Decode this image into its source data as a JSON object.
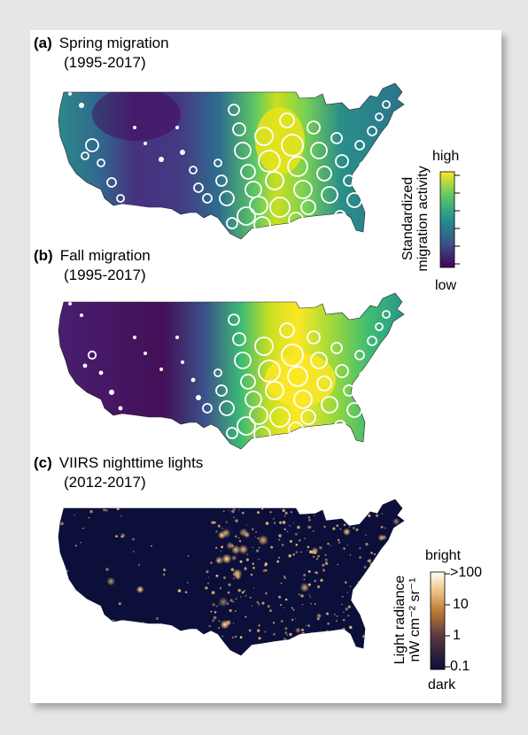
{
  "panels": {
    "a": {
      "letter": "(a)",
      "title": "Spring migration",
      "period": "(1995-2017)"
    },
    "b": {
      "letter": "(b)",
      "title": "Fall migration",
      "period": "(1995-2017)"
    },
    "c": {
      "letter": "(c)",
      "title": "VIIRS nighttime lights",
      "period": "(2012-2017)"
    }
  },
  "legend_migration": {
    "high": "high",
    "low": "low",
    "title_line1": "Standardized",
    "title_line2": "migration activity",
    "colors": [
      "#440154",
      "#3b528b",
      "#21908d",
      "#5dc863",
      "#fde725"
    ]
  },
  "legend_lights": {
    "bright": "bright",
    "dark": "dark",
    "title_line1": "Light radiance",
    "title_line2": "nW cm⁻² sr⁻¹",
    "ticks": [
      ">100",
      "10",
      "1",
      "0.1"
    ],
    "colors": [
      "#fffbf0",
      "#f5d7a0",
      "#d08a3a",
      "#6a4a3a",
      "#0b0f38"
    ]
  },
  "map_colors": {
    "night_background": "#0b0f3a",
    "light_color": "#f7c98a",
    "circle_stroke": "#ffffff"
  }
}
